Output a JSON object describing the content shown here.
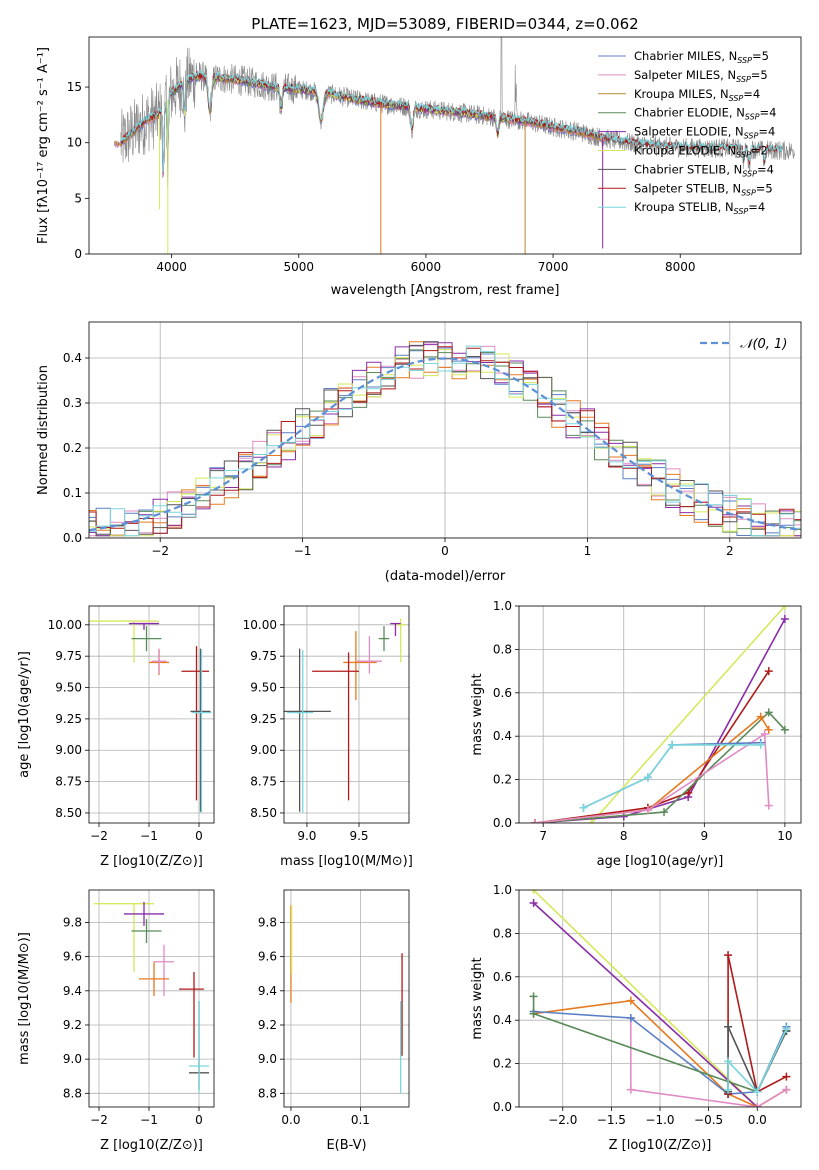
{
  "figure_title": "PLATE=1623, MJD=53089, FIBERID=0344, z=0.062",
  "colors": {
    "Chabrier MILES": "#5b7fc6",
    "Salpeter MILES": "#e08bc4",
    "Kroupa MILES": "#b8892f",
    "Chabrier ELODIE": "#5a8a5a",
    "Salpeter ELODIE": "#8a2ca8",
    "Kroupa ELODIE": "#d6e85a",
    "Chabrier STELIB": "#555555",
    "Salpeter STELIB": "#b01a1a",
    "Kroupa STELIB": "#7ad6dc",
    "data": "#888888",
    "orange": "#e57a20",
    "gaussian": "#5b8fd6"
  },
  "chart_data": [
    {
      "id": "spectrum",
      "type": "line",
      "title": "",
      "xlabel": "wavelength [Angstrom, rest frame]",
      "ylabel": "Flux [fλ10⁻¹⁷ erg cm⁻² s⁻¹ A⁻¹]",
      "xlim": [
        3350,
        8950
      ],
      "ylim": [
        0,
        19.5
      ],
      "xticks": [
        4000,
        5000,
        6000,
        7000,
        8000
      ],
      "yticks": [
        0,
        5,
        10,
        15
      ],
      "grid": false,
      "legend_position": "top-right",
      "legend": [
        "Chabrier MILES, N_SSP=5",
        "Salpeter MILES, N_SSP=5",
        "Kroupa MILES, N_SSP=4",
        "Chabrier ELODIE, N_SSP=4",
        "Salpeter ELODIE, N_SSP=4",
        "Kroupa ELODIE, N_SSP=2",
        "Chabrier STELIB, N_SSP=4",
        "Salpeter STELIB, N_SSP=5",
        "Kroupa STELIB, N_SSP=4"
      ],
      "continuum_x": [
        3600,
        3700,
        3800,
        3900,
        4000,
        4100,
        4200,
        4400,
        4600,
        4800,
        5000,
        5200,
        5400,
        5600,
        5800,
        6000,
        6200,
        6400,
        6600,
        6800,
        7000,
        7200,
        7400,
        7600,
        7800,
        8000,
        8200,
        8400,
        8600,
        8800
      ],
      "continuum_y": [
        10.0,
        11.0,
        12.0,
        12.5,
        14.5,
        15.5,
        16.0,
        15.8,
        15.5,
        15.0,
        14.8,
        14.5,
        14.0,
        13.6,
        13.3,
        13.0,
        12.8,
        12.5,
        12.2,
        11.9,
        11.4,
        11.0,
        10.4,
        10.0,
        9.7,
        9.6,
        9.5,
        9.5,
        9.4,
        9.3
      ]
    },
    {
      "id": "residuals",
      "type": "step",
      "title": "",
      "xlabel": "(data-model)/error",
      "ylabel": "Normed distribution",
      "xlim": [
        -2.5,
        2.5
      ],
      "ylim": [
        0,
        0.48
      ],
      "xticks": [
        -2,
        -1,
        0,
        1,
        2
      ],
      "yticks": [
        0.0,
        0.1,
        0.2,
        0.3,
        0.4
      ],
      "grid": true,
      "legend_position": "top-right",
      "legend": [
        "𝒩(0, 1)"
      ],
      "bin_width": 0.1
    },
    {
      "id": "age-vs-Z",
      "type": "scatter",
      "xlabel": "Z [log10(Z/Z⊙)]",
      "ylabel": "age  [log10(age/yr)]",
      "xlim": [
        -2.2,
        0.3
      ],
      "ylim": [
        8.42,
        10.15
      ],
      "xticks": [
        -2,
        -1,
        0
      ],
      "yticks": [
        8.5,
        8.75,
        9.0,
        9.25,
        9.5,
        9.75,
        10.0
      ],
      "grid": true,
      "points": [
        {
          "series": "Kroupa ELODIE",
          "x": -1.3,
          "y": 10.03,
          "xerr": [
            0.9,
            0.5
          ],
          "yerr": [
            0.33,
            0.0
          ]
        },
        {
          "series": "Salpeter ELODIE",
          "x": -1.1,
          "y": 10.01,
          "xerr": [
            0.3,
            0.3
          ],
          "yerr": [
            0.05,
            0.0
          ]
        },
        {
          "series": "Chabrier ELODIE",
          "x": -1.05,
          "y": 9.89,
          "xerr": [
            0.3,
            0.3
          ],
          "yerr": [
            0.1,
            0.1
          ]
        },
        {
          "series": "Kroupa MILES",
          "x": -0.8,
          "y": 9.7,
          "xerr": [
            0.2,
            0.2
          ],
          "yerr": [
            0.1,
            0.1
          ]
        },
        {
          "series": "Salpeter MILES",
          "x": -0.8,
          "y": 9.71,
          "xerr": [
            0.15,
            0.15
          ],
          "yerr": [
            0.1,
            0.1
          ]
        },
        {
          "series": "Salpeter STELIB",
          "x": -0.05,
          "y": 9.63,
          "xerr": [
            0.3,
            0.25
          ],
          "yerr": [
            1.03,
            0.2
          ]
        },
        {
          "series": "Chabrier STELIB",
          "x": 0.03,
          "y": 9.31,
          "xerr": [
            0.2,
            0.2
          ],
          "yerr": [
            0.8,
            0.5
          ]
        },
        {
          "series": "Kroupa STELIB",
          "x": 0.05,
          "y": 9.3,
          "xerr": [
            0.2,
            0.2
          ],
          "yerr": [
            0.8,
            0.5
          ]
        }
      ]
    },
    {
      "id": "age-vs-mass",
      "type": "scatter",
      "xlabel": "mass [log10(M/M⊙)]",
      "ylabel": "",
      "xlim": [
        8.78,
        9.98
      ],
      "ylim": [
        8.42,
        10.15
      ],
      "xticks": [
        9.0,
        9.5
      ],
      "yticks": [
        8.5,
        8.75,
        9.0,
        9.25,
        9.5,
        9.75,
        10.0
      ],
      "grid": true,
      "points": [
        {
          "series": "Kroupa ELODIE",
          "x": 9.9,
          "y": 10.0,
          "xerr": [
            0.05,
            0.05
          ],
          "yerr": [
            0.3,
            0.05
          ]
        },
        {
          "series": "Salpeter ELODIE",
          "x": 9.85,
          "y": 10.01,
          "xerr": [
            0.05,
            0.05
          ],
          "yerr": [
            0.1,
            0.0
          ]
        },
        {
          "series": "Chabrier ELODIE",
          "x": 9.74,
          "y": 9.89,
          "xerr": [
            0.05,
            0.05
          ],
          "yerr": [
            0.1,
            0.1
          ]
        },
        {
          "series": "Kroupa MILES",
          "x": 9.47,
          "y": 9.7,
          "xerr": [
            0.12,
            0.2
          ],
          "yerr": [
            0.3,
            0.25
          ]
        },
        {
          "series": "Salpeter MILES",
          "x": 9.6,
          "y": 9.71,
          "xerr": [
            0.12,
            0.12
          ],
          "yerr": [
            0.1,
            0.2
          ]
        },
        {
          "series": "Salpeter STELIB",
          "x": 9.4,
          "y": 9.63,
          "xerr": [
            0.35,
            0.1
          ],
          "yerr": [
            1.03,
            0.15
          ]
        },
        {
          "series": "Chabrier STELIB",
          "x": 8.93,
          "y": 9.31,
          "xerr": [
            0.15,
            0.3
          ],
          "yerr": [
            0.8,
            0.5
          ]
        },
        {
          "series": "Kroupa STELIB",
          "x": 8.96,
          "y": 9.3,
          "xerr": [
            0.15,
            0.1
          ],
          "yerr": [
            0.8,
            0.5
          ]
        }
      ]
    },
    {
      "id": "weight-vs-age",
      "type": "line",
      "xlabel": "age  [log10(age/yr)]",
      "ylabel": "mass weight",
      "xlim": [
        6.7,
        10.2
      ],
      "ylim": [
        0,
        1.0
      ],
      "xticks": [
        7,
        8,
        9,
        10
      ],
      "yticks": [
        0.0,
        0.2,
        0.4,
        0.6,
        0.8,
        1.0
      ],
      "grid": true,
      "series": [
        {
          "name": "Kroupa ELODIE",
          "x": [
            7.6,
            10.0
          ],
          "y": [
            0.0,
            1.0
          ]
        },
        {
          "name": "Salpeter ELODIE",
          "x": [
            6.9,
            8.0,
            8.8,
            10.0
          ],
          "y": [
            0.0,
            0.03,
            0.12,
            0.94
          ]
        },
        {
          "name": "Salpeter STELIB",
          "x": [
            6.9,
            8.3,
            8.8,
            9.8
          ],
          "y": [
            0.0,
            0.07,
            0.14,
            0.7
          ]
        },
        {
          "name": "Chabrier ELODIE",
          "x": [
            6.9,
            8.5,
            9.8,
            10.0
          ],
          "y": [
            0.0,
            0.05,
            0.51,
            0.43
          ]
        },
        {
          "name": "Kroupa MILES",
          "x": [
            6.9,
            8.3,
            9.7,
            9.8
          ],
          "y": [
            0.0,
            0.06,
            0.49,
            0.43
          ]
        },
        {
          "name": "Salpeter MILES",
          "x": [
            6.9,
            8.3,
            9.75,
            9.8
          ],
          "y": [
            0.0,
            0.06,
            0.41,
            0.08
          ]
        },
        {
          "name": "Chabrier MILES",
          "x": [
            7.5,
            8.3,
            8.6,
            9.7
          ],
          "y": [
            0.07,
            0.21,
            0.36,
            0.37
          ]
        },
        {
          "name": "Kroupa STELIB",
          "x": [
            7.5,
            8.3,
            8.6,
            9.7
          ],
          "y": [
            0.07,
            0.21,
            0.36,
            0.36
          ]
        }
      ]
    },
    {
      "id": "mass-vs-Z",
      "type": "scatter",
      "xlabel": "Z [log10(Z/Z⊙)]",
      "ylabel": "mass [log10(M/M⊙)]",
      "xlim": [
        -2.2,
        0.3
      ],
      "ylim": [
        8.72,
        9.99
      ],
      "xticks": [
        -2,
        -1,
        0
      ],
      "yticks": [
        8.8,
        9.0,
        9.2,
        9.4,
        9.6,
        9.8
      ],
      "grid": true,
      "points": [
        {
          "series": "Kroupa ELODIE",
          "x": -1.3,
          "y": 9.91,
          "xerr": [
            0.8,
            0.4
          ],
          "yerr": [
            0.4,
            0.0
          ]
        },
        {
          "series": "Salpeter ELODIE",
          "x": -1.1,
          "y": 9.85,
          "xerr": [
            0.4,
            0.4
          ],
          "yerr": [
            0.07,
            0.07
          ]
        },
        {
          "series": "Chabrier ELODIE",
          "x": -1.05,
          "y": 9.75,
          "xerr": [
            0.3,
            0.3
          ],
          "yerr": [
            0.07,
            0.07
          ]
        },
        {
          "series": "Salpeter MILES",
          "x": -0.7,
          "y": 9.57,
          "xerr": [
            0.2,
            0.2
          ],
          "yerr": [
            0.2,
            0.1
          ]
        },
        {
          "series": "Kroupa MILES",
          "x": -0.9,
          "y": 9.47,
          "xerr": [
            0.3,
            0.3
          ],
          "yerr": [
            0.1,
            0.1
          ]
        },
        {
          "series": "Salpeter STELIB",
          "x": -0.1,
          "y": 9.41,
          "xerr": [
            0.3,
            0.2
          ],
          "yerr": [
            0.4,
            0.1
          ]
        },
        {
          "series": "Chabrier STELIB",
          "x": 0.0,
          "y": 8.92,
          "xerr": [
            0.2,
            0.2
          ],
          "yerr": [
            0.1,
            0.42
          ]
        },
        {
          "series": "Kroupa STELIB",
          "x": 0.0,
          "y": 8.96,
          "xerr": [
            0.2,
            0.2
          ],
          "yerr": [
            0.16,
            0.38
          ]
        }
      ]
    },
    {
      "id": "mass-vs-EBV",
      "type": "scatter",
      "xlabel": "E(B-V)",
      "ylabel": "",
      "xlim": [
        -0.01,
        0.17
      ],
      "ylim": [
        8.72,
        9.99
      ],
      "xticks": [
        0.0,
        0.1
      ],
      "yticks": [
        8.8,
        9.0,
        9.2,
        9.4,
        9.6,
        9.8
      ],
      "grid": true,
      "points": [
        {
          "series": "Kroupa MILES",
          "x": 0.0,
          "y": 9.6,
          "xerr": [
            0,
            0
          ],
          "yerr": [
            0.27,
            0.3
          ]
        },
        {
          "series": "Kroupa ELODIE",
          "x": 0.001,
          "y": 9.6,
          "xerr": [
            0,
            0
          ],
          "yerr": [
            0.1,
            0.3
          ]
        },
        {
          "series": "Salpeter STELIB",
          "x": 0.16,
          "y": 9.3,
          "xerr": [
            0,
            0
          ],
          "yerr": [
            0.28,
            0.32
          ]
        },
        {
          "series": "Kroupa STELIB",
          "x": 0.158,
          "y": 9.1,
          "xerr": [
            0,
            0
          ],
          "yerr": [
            0.3,
            0.24
          ]
        }
      ]
    },
    {
      "id": "weight-vs-Z",
      "type": "line",
      "xlabel": "Z [log10(Z/Z⊙)]",
      "ylabel": "mass weight",
      "xlim": [
        -2.45,
        0.45
      ],
      "ylim": [
        0,
        1.0
      ],
      "xticks": [
        -2.0,
        -1.5,
        -1.0,
        -0.5,
        0.0
      ],
      "yticks": [
        0.0,
        0.2,
        0.4,
        0.6,
        0.8,
        1.0
      ],
      "grid": true,
      "series": [
        {
          "name": "Kroupa ELODIE",
          "x": [
            -2.3,
            0.0
          ],
          "y": [
            1.0,
            0.0
          ]
        },
        {
          "name": "Salpeter ELODIE",
          "x": [
            -2.3,
            0.0
          ],
          "y": [
            0.94,
            0.0
          ]
        },
        {
          "name": "Kroupa MILES",
          "x": [
            -2.3,
            -1.3,
            -0.3,
            0.0,
            0.3
          ],
          "y": [
            0.43,
            0.49,
            0.06,
            0.0,
            0.08
          ]
        },
        {
          "name": "Salpeter MILES",
          "x": [
            -1.3,
            -1.3,
            0.0,
            0.3
          ],
          "y": [
            0.41,
            0.08,
            0.0,
            0.08
          ]
        },
        {
          "name": "Chabrier MILES",
          "x": [
            -2.3,
            -1.3,
            -0.3,
            0.0,
            0.3
          ],
          "y": [
            0.44,
            0.41,
            0.06,
            0.07,
            0.37
          ]
        },
        {
          "name": "Chabrier ELODIE",
          "x": [
            -2.3,
            -2.3,
            0.0,
            0.3
          ],
          "y": [
            0.51,
            0.43,
            0.07,
            0.35
          ]
        },
        {
          "name": "Salpeter STELIB",
          "x": [
            -0.3,
            -0.3,
            0.0,
            0.3
          ],
          "y": [
            0.06,
            0.7,
            0.07,
            0.14
          ]
        },
        {
          "name": "Chabrier STELIB",
          "x": [
            -0.3,
            -0.3,
            0.0,
            0.3
          ],
          "y": [
            0.07,
            0.37,
            0.07,
            0.35
          ]
        },
        {
          "name": "Kroupa STELIB",
          "x": [
            -0.3,
            -0.3,
            0.0,
            0.3
          ],
          "y": [
            0.08,
            0.21,
            0.07,
            0.36
          ]
        }
      ]
    }
  ]
}
